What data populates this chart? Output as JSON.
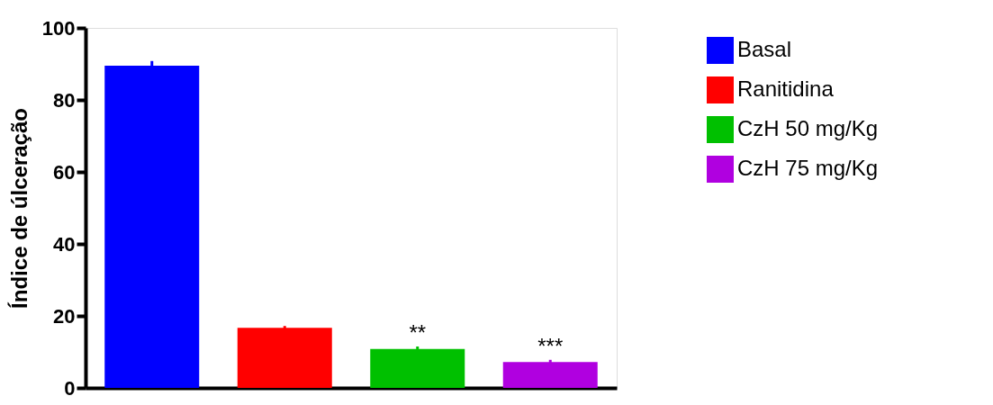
{
  "chart_data": {
    "type": "bar",
    "ylabel": "Índice de úlceração",
    "categories": [
      null,
      null,
      null,
      null
    ],
    "series": [
      {
        "name": "Basal",
        "color": "#0000ff",
        "values": [
          89.5,
          null,
          null,
          null
        ],
        "errors": [
          1.3,
          null,
          null,
          null
        ]
      },
      {
        "name": "Ranitidina",
        "color": "#ff0000",
        "values": [
          null,
          16.7,
          null,
          null
        ],
        "errors": [
          null,
          0.5,
          null,
          null
        ]
      },
      {
        "name": "CzH 50 mg/Kg",
        "color": "#00c000",
        "values": [
          null,
          null,
          10.8,
          null
        ],
        "errors": [
          null,
          null,
          0.7,
          null
        ]
      },
      {
        "name": "CzH 75 mg/Kg",
        "color": "#b000e0",
        "values": [
          null,
          null,
          null,
          7.2
        ],
        "errors": [
          null,
          null,
          null,
          0.6
        ]
      }
    ],
    "ylim": [
      0,
      100
    ],
    "yticks": [
      0,
      20,
      40,
      60,
      80,
      100
    ],
    "annotations": [
      "**",
      "***"
    ],
    "legend": "right",
    "tick_labels": "y",
    "grid": false
  }
}
